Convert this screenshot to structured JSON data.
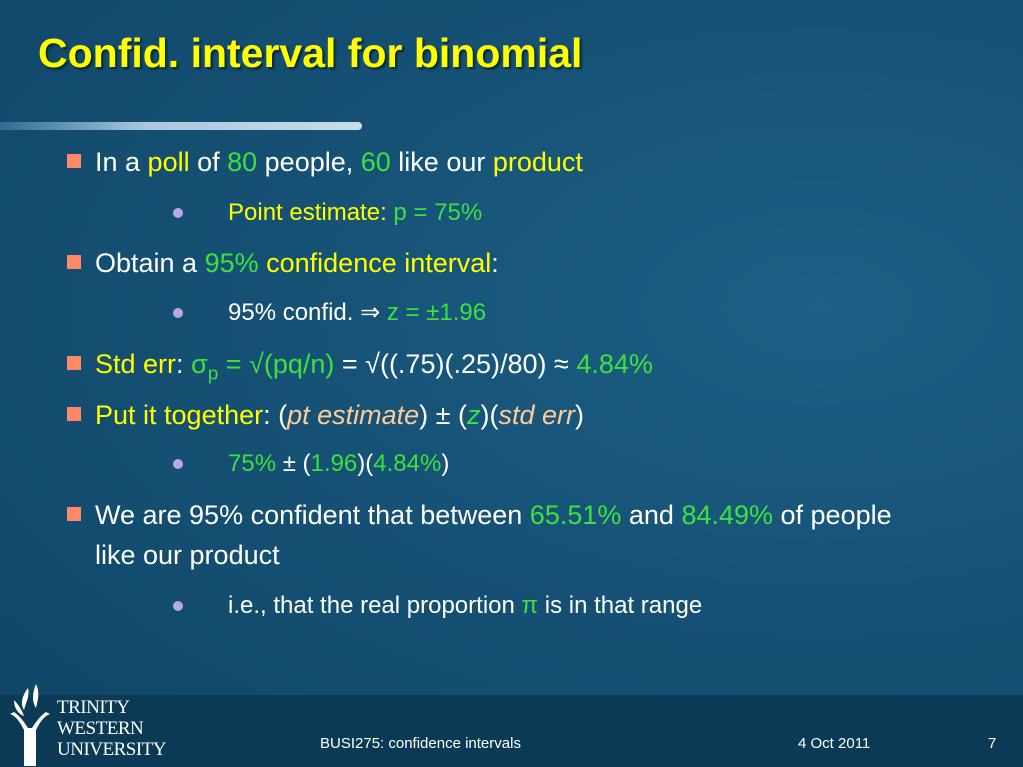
{
  "header": {
    "title": "Confid. interval for binomial"
  },
  "bullets": [
    {
      "level": 1,
      "runs": [
        {
          "text": "In a ",
          "color": "#ffffff"
        },
        {
          "text": "poll",
          "color": "#ffff00"
        },
        {
          "text": " of ",
          "color": "#ffffff"
        },
        {
          "text": "80",
          "color": "#3ee03e"
        },
        {
          "text": " people, ",
          "color": "#ffffff"
        },
        {
          "text": "60",
          "color": "#3ee03e"
        },
        {
          "text": " like our ",
          "color": "#ffffff"
        },
        {
          "text": "product",
          "color": "#ffff00"
        }
      ]
    },
    {
      "level": 2,
      "runs": [
        {
          "text": "Point estimate: ",
          "color": "#ffff00"
        },
        {
          "text": "p = 75%",
          "color": "#3ee03e"
        }
      ]
    },
    {
      "level": 1,
      "runs": [
        {
          "text": "Obtain a ",
          "color": "#ffffff"
        },
        {
          "text": "95%",
          "color": "#3ee03e"
        },
        {
          "text": " confidence interval",
          "color": "#ffff00"
        },
        {
          "text": ":",
          "color": "#ffffff"
        }
      ]
    },
    {
      "level": 2,
      "runs": [
        {
          "text": "95% confid. ⇒ ",
          "color": "#ffffff"
        },
        {
          "text": "z = ±1.96",
          "color": "#3ee03e"
        }
      ]
    },
    {
      "level": 1,
      "runs": [
        {
          "text": "Std err",
          "color": "#ffff00"
        },
        {
          "text": ": ",
          "color": "#ffffff"
        },
        {
          "text": "σ",
          "color": "#3ee03e"
        },
        {
          "text": "p",
          "color": "#3ee03e",
          "sub": true
        },
        {
          "text": " = √(pq/n)",
          "color": "#3ee03e"
        },
        {
          "text": " = √((.75)(.25)/80) ≈ ",
          "color": "#ffffff"
        },
        {
          "text": "4.84%",
          "color": "#3ee03e"
        }
      ]
    },
    {
      "level": 1,
      "runs": [
        {
          "text": "Put it together",
          "color": "#ffff00"
        },
        {
          "text": ": (",
          "color": "#ffffff"
        },
        {
          "text": "pt estimate",
          "color": "#ffcc99",
          "italic": true
        },
        {
          "text": ") ± (",
          "color": "#ffffff"
        },
        {
          "text": "z",
          "color": "#3ee03e",
          "italic": true
        },
        {
          "text": ")(",
          "color": "#ffffff"
        },
        {
          "text": "std err",
          "color": "#ffcc99",
          "italic": true
        },
        {
          "text": ")",
          "color": "#ffffff"
        }
      ]
    },
    {
      "level": 2,
      "runs": [
        {
          "text": "75%",
          "color": "#3ee03e"
        },
        {
          "text": " ± (",
          "color": "#ffffff"
        },
        {
          "text": "1.96",
          "color": "#3ee03e"
        },
        {
          "text": ")(",
          "color": "#ffffff"
        },
        {
          "text": "4.84%",
          "color": "#3ee03e"
        },
        {
          "text": ")",
          "color": "#ffffff"
        }
      ]
    },
    {
      "level": 1,
      "runs": [
        {
          "text": "We are 95% confident that between ",
          "color": "#ffffff"
        },
        {
          "text": "65.51%",
          "color": "#3ee03e"
        },
        {
          "text": " and ",
          "color": "#ffffff"
        },
        {
          "text": "84.49%",
          "color": "#3ee03e"
        },
        {
          "text": " of people like our product",
          "color": "#ffffff"
        }
      ]
    },
    {
      "level": 2,
      "runs": [
        {
          "text": "i.e., that the real proportion ",
          "color": "#ffffff"
        },
        {
          "text": "π",
          "color": "#3ee03e"
        },
        {
          "text": " is in that range",
          "color": "#ffffff"
        }
      ]
    }
  ],
  "logo": {
    "lines": [
      "TRINITY",
      "WESTERN",
      "UNIVERSITY"
    ]
  },
  "footer": {
    "course": "BUSI275: confidence intervals",
    "date": "4 Oct 2011",
    "page": "7"
  }
}
